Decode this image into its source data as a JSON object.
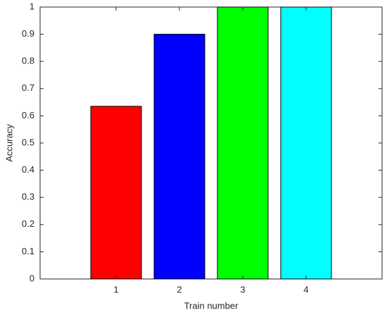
{
  "chart_data": {
    "type": "bar",
    "x": [
      1,
      2,
      3,
      4
    ],
    "values": [
      0.635,
      0.9,
      1,
      1
    ],
    "colors": [
      "#ff0000",
      "#0000ff",
      "#00ff00",
      "#00ffff"
    ],
    "xlabel": "Train number",
    "ylabel": "Accuracy",
    "xlim": [
      -0.2,
      5.2
    ],
    "xticks": [
      1,
      2,
      3,
      4
    ],
    "ylim": [
      0,
      1
    ],
    "yticks": [
      0,
      0.1,
      0.2,
      0.3,
      0.4,
      0.5,
      0.6,
      0.7,
      0.8,
      0.9,
      1
    ]
  }
}
